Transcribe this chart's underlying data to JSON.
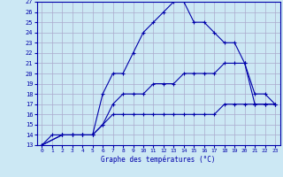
{
  "xlabel": "Graphe des températures (°C)",
  "bg_color": "#cce8f4",
  "grid_color": "#aaaacc",
  "line_color": "#0000aa",
  "xlim": [
    -0.5,
    23.5
  ],
  "ylim": [
    13,
    27
  ],
  "xticks": [
    0,
    1,
    2,
    3,
    4,
    5,
    6,
    7,
    8,
    9,
    10,
    11,
    12,
    13,
    14,
    15,
    16,
    17,
    18,
    19,
    20,
    21,
    22,
    23
  ],
  "yticks": [
    13,
    14,
    15,
    16,
    17,
    18,
    19,
    20,
    21,
    22,
    23,
    24,
    25,
    26,
    27
  ],
  "line1_x": [
    0,
    1,
    2,
    3,
    4,
    5,
    6,
    7,
    8,
    9,
    10,
    11,
    12,
    13,
    14,
    15,
    16,
    17,
    18,
    19,
    20,
    21,
    22,
    23
  ],
  "line1_y": [
    13,
    14,
    14,
    14,
    14,
    14,
    18,
    20,
    20,
    22,
    24,
    25,
    26,
    27,
    27,
    25,
    25,
    24,
    23,
    23,
    21,
    17,
    17,
    17
  ],
  "line2_x": [
    0,
    2,
    3,
    4,
    5,
    6,
    7,
    8,
    9,
    10,
    11,
    12,
    13,
    14,
    15,
    16,
    17,
    18,
    19,
    20,
    21,
    22,
    23
  ],
  "line2_y": [
    13,
    14,
    14,
    14,
    14,
    15,
    17,
    18,
    18,
    18,
    19,
    19,
    19,
    20,
    20,
    20,
    20,
    21,
    21,
    21,
    18,
    18,
    17
  ],
  "line3_x": [
    0,
    2,
    3,
    4,
    5,
    6,
    7,
    8,
    9,
    10,
    11,
    12,
    13,
    14,
    15,
    16,
    17,
    18,
    19,
    20,
    21,
    22,
    23
  ],
  "line3_y": [
    13,
    14,
    14,
    14,
    14,
    15,
    16,
    16,
    16,
    16,
    16,
    16,
    16,
    16,
    16,
    16,
    16,
    17,
    17,
    17,
    17,
    17,
    17
  ]
}
